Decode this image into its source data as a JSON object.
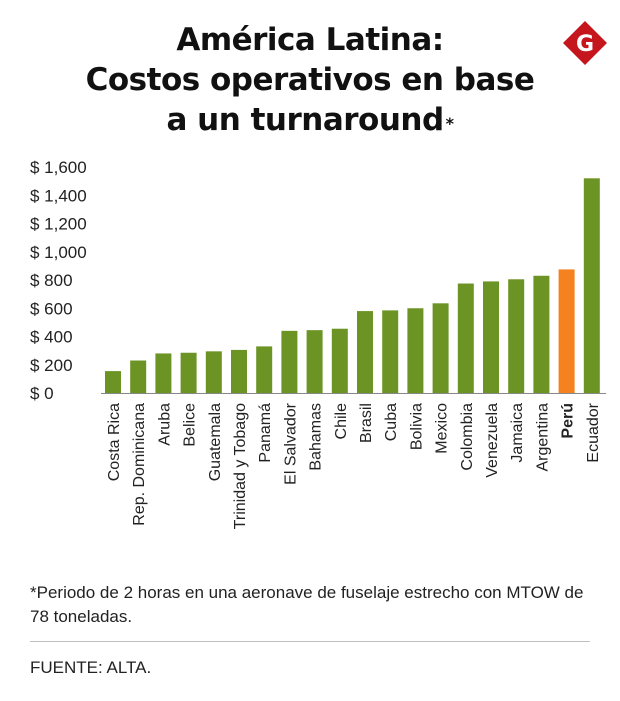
{
  "header": {
    "title_line1": "América Latina:",
    "title_line2": "Costos operativos en base",
    "title_line3": "a un turnaround",
    "title_mark": "*"
  },
  "logo": {
    "icon": "g-logo-icon",
    "letter": "G",
    "color": "#c4161c"
  },
  "chart_data": {
    "type": "bar",
    "categories": [
      "Costa Rica",
      "Rep. Dominicana",
      "Aruba",
      "Belice",
      "Guatemala",
      "Trinidad y Tobago",
      "Panamá",
      "El Salvador",
      "Bahamas",
      "Chile",
      "Brasil",
      "Cuba",
      "Bolivia",
      "Mexico",
      "Colombia",
      "Venezuela",
      "Jamaica",
      "Argentina",
      "Perú",
      "Ecuador"
    ],
    "values": [
      155,
      230,
      280,
      285,
      295,
      305,
      330,
      440,
      445,
      455,
      580,
      585,
      600,
      635,
      775,
      790,
      805,
      830,
      875,
      1520
    ],
    "highlight": "Perú",
    "ylim": [
      0,
      1600
    ],
    "yticks": [
      0,
      200,
      400,
      600,
      800,
      1000,
      1200,
      1400,
      1600
    ],
    "ytick_labels": [
      "$ 0",
      "$ 200",
      "$ 400",
      "$ 600",
      "$ 800",
      "$ 1,000",
      "$ 1,200",
      "$ 1,400",
      "$ 1,600"
    ],
    "grid": false,
    "legend": "none",
    "colors": {
      "bar": "#6b9425",
      "highlight": "#f5821f"
    }
  },
  "footnote": "*Periodo de 2 horas en una aeronave de fuselaje estrecho con MTOW de 78 toneladas.",
  "source": "FUENTE: ALTA."
}
